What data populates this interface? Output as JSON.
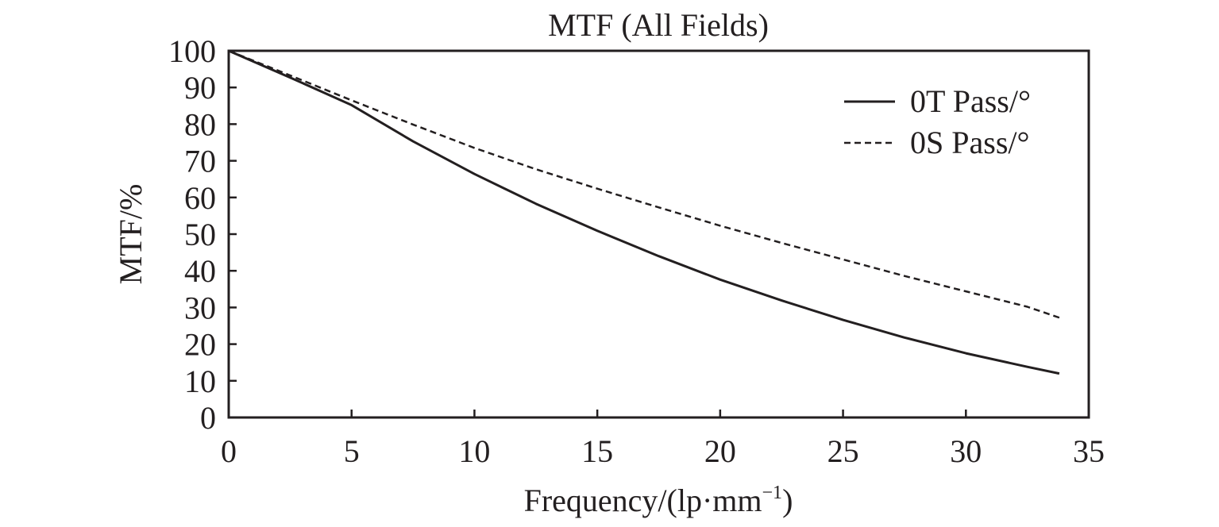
{
  "chart_data": {
    "type": "line",
    "title": "MTF (All Fields)",
    "xlabel": "Frequency/(lp·mm",
    "xlabel_superscript": "−1",
    "xlabel_close": ")",
    "ylabel": "MTF/%",
    "xlim": [
      0,
      35
    ],
    "ylim": [
      0,
      100
    ],
    "x_ticks": [
      "0",
      "5",
      "10",
      "15",
      "20",
      "25",
      "30",
      "35"
    ],
    "y_ticks": [
      "0",
      "10",
      "20",
      "30",
      "40",
      "50",
      "60",
      "70",
      "80",
      "90",
      "100"
    ],
    "legend_position": "top-right",
    "grid": false,
    "series": [
      {
        "name": "0T Pass/°",
        "line_style": "solid",
        "color": "#231f20",
        "x": [
          0,
          2.5,
          5,
          7.5,
          10,
          12.5,
          15,
          17.5,
          20,
          22.5,
          25,
          27.5,
          30,
          32.5,
          33.8
        ],
        "y": [
          100,
          92.7,
          85.2,
          75.3,
          66.4,
          58.3,
          50.9,
          44.0,
          37.6,
          31.9,
          26.6,
          21.8,
          17.5,
          13.8,
          12.0
        ]
      },
      {
        "name": "0S Pass/°",
        "line_style": "dashed",
        "color": "#231f20",
        "x": [
          0,
          2.5,
          5,
          7.5,
          10,
          12.5,
          15,
          17.5,
          20,
          22.5,
          25,
          27.5,
          30,
          32.5,
          33.9
        ],
        "y": [
          100,
          93.3,
          86.5,
          79.9,
          73.5,
          67.7,
          62.4,
          57.3,
          52.3,
          47.6,
          43.1,
          38.6,
          34.4,
          30.2,
          27.0
        ]
      }
    ]
  }
}
